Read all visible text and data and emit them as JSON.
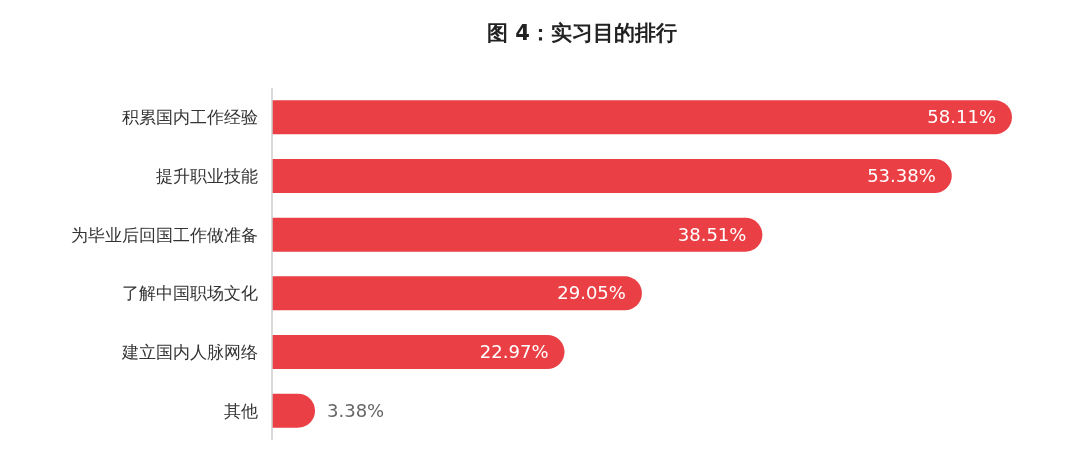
{
  "chart_data": {
    "type": "bar",
    "orientation": "horizontal",
    "title": "图 4：实习目的排行",
    "categories": [
      "积累国内工作经验",
      "提升职业技能",
      "为毕业后回国工作做准备",
      "了解中国职场文化",
      "建立国内人脉网络",
      "其他"
    ],
    "values": [
      58.11,
      53.38,
      38.51,
      29.05,
      22.97,
      3.38
    ],
    "value_labels": [
      "58.11%",
      "53.38%",
      "38.51%",
      "29.05%",
      "22.97%",
      "3.38%"
    ],
    "color": "#ea4045"
  }
}
